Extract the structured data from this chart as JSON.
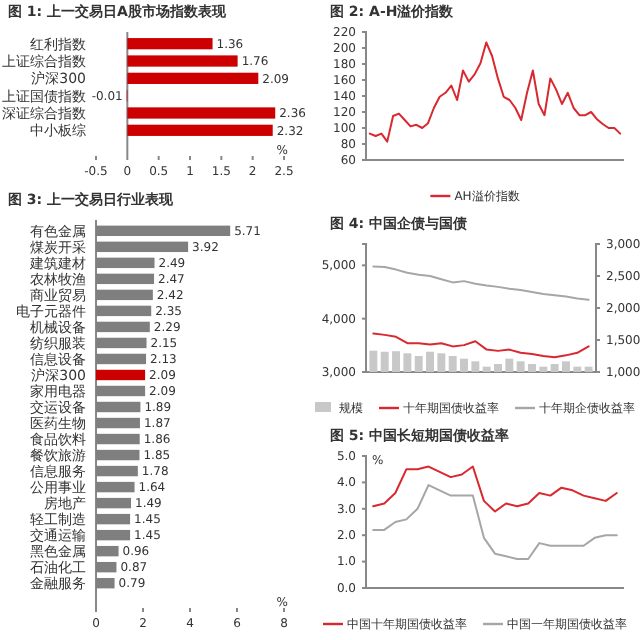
{
  "chart_data": [
    {
      "type": "bar",
      "orientation": "horizontal",
      "title": "图 1: 上一交易日A股市场指数表现",
      "categories": [
        "红利指数",
        "上证综合指数",
        "沪深300",
        "上证国债指数",
        "深证综合指数",
        "中小板综"
      ],
      "values": [
        1.36,
        1.76,
        2.09,
        -0.01,
        2.36,
        2.32
      ],
      "color": "#cc0000",
      "data_labels": true,
      "xlim": [
        -0.5,
        2.5
      ],
      "xticks": [
        -0.5,
        0,
        0.5,
        1,
        1.5,
        2,
        2.5
      ],
      "annotations": [
        "%"
      ]
    },
    {
      "type": "line",
      "title": "图 2: A-H溢价指数",
      "categories": [
        null,
        null,
        null,
        null,
        null,
        null,
        null,
        null,
        null,
        null,
        null,
        null,
        null,
        null,
        null,
        null,
        null,
        null,
        null,
        null,
        null,
        null,
        null,
        null,
        null,
        null,
        null,
        null,
        null,
        null,
        null,
        null,
        null,
        null,
        null,
        null,
        null,
        null,
        null,
        null,
        null,
        null,
        null,
        null
      ],
      "series": [
        {
          "name": "AH溢价指数",
          "color": "#d9282f",
          "values": [
            93,
            90,
            93,
            83,
            115,
            118,
            110,
            102,
            104,
            100,
            106,
            125,
            139,
            144,
            153,
            135,
            172,
            158,
            167,
            181,
            207,
            190,
            162,
            139,
            135,
            125,
            110,
            144,
            172,
            130,
            116,
            162,
            148,
            130,
            144,
            125,
            116,
            116,
            120,
            111,
            105,
            100,
            100,
            93
          ]
        }
      ],
      "ylim": [
        60,
        220
      ],
      "yticks": [
        60,
        80,
        100,
        120,
        140,
        160,
        180,
        200,
        220
      ],
      "legend": "bottom"
    },
    {
      "type": "bar",
      "orientation": "horizontal",
      "title": "图 3: 上一交易日行业表现",
      "categories": [
        "有色金属",
        "煤炭开采",
        "建筑建材",
        "农林牧渔",
        "商业贸易",
        "电子元器件",
        "机械设备",
        "纺织服装",
        "信息设备",
        "沪深300",
        "家用电器",
        "交运设备",
        "医药生物",
        "食品饮料",
        "餐饮旅游",
        "信息服务",
        "公用事业",
        "房地产",
        "轻工制造",
        "交通运输",
        "黑色金属",
        "石油化工",
        "金融服务"
      ],
      "values": [
        5.71,
        3.92,
        2.49,
        2.47,
        2.42,
        2.35,
        2.29,
        2.15,
        2.13,
        2.09,
        2.09,
        1.89,
        1.87,
        1.86,
        1.85,
        1.78,
        1.64,
        1.49,
        1.45,
        1.45,
        0.96,
        0.87,
        0.79
      ],
      "colors": [
        "#7f7f7f",
        "#7f7f7f",
        "#7f7f7f",
        "#7f7f7f",
        "#7f7f7f",
        "#7f7f7f",
        "#7f7f7f",
        "#7f7f7f",
        "#7f7f7f",
        "#cc0000",
        "#7f7f7f",
        "#7f7f7f",
        "#7f7f7f",
        "#7f7f7f",
        "#7f7f7f",
        "#7f7f7f",
        "#7f7f7f",
        "#7f7f7f",
        "#7f7f7f",
        "#7f7f7f",
        "#7f7f7f",
        "#7f7f7f",
        "#7f7f7f"
      ],
      "data_labels": true,
      "xlim": [
        0,
        8
      ],
      "xticks": [
        0,
        2,
        4,
        6,
        8
      ],
      "annotations": [
        "%"
      ]
    },
    {
      "type": "bar",
      "title": "图 4: 中国企债与国债",
      "categories": [
        null,
        null,
        null,
        null,
        null,
        null,
        null,
        null,
        null,
        null,
        null,
        null,
        null,
        null,
        null,
        null,
        null,
        null,
        null,
        null
      ],
      "series": [
        {
          "name": "规模",
          "type": "bar",
          "color": "#c8c8c8",
          "values": [
            3400,
            3380,
            3390,
            3350,
            3300,
            3380,
            3350,
            3300,
            3250,
            3200,
            3100,
            3150,
            3250,
            3200,
            3150,
            3100,
            3150,
            3200,
            3100,
            3100
          ]
        },
        {
          "name": "十年期国债收益率",
          "type": "line",
          "axis": "y2",
          "color": "#d9282f",
          "values": [
            1600,
            1580,
            1550,
            1450,
            1450,
            1430,
            1450,
            1400,
            1420,
            1480,
            1350,
            1330,
            1350,
            1300,
            1280,
            1250,
            1230,
            1260,
            1300,
            1400
          ]
        },
        {
          "name": "十年期企债收益率",
          "type": "line",
          "axis": "y2",
          "color": "#a6a6a6",
          "values": [
            2650,
            2640,
            2600,
            2550,
            2520,
            2500,
            2450,
            2400,
            2420,
            2380,
            2350,
            2330,
            2300,
            2280,
            2250,
            2220,
            2200,
            2180,
            2150,
            2130
          ]
        }
      ],
      "ylim": [
        3000,
        5400
      ],
      "yticks": [
        {
          "value": 3000,
          "label": "3,000"
        },
        {
          "value": 4000,
          "label": "4,000"
        },
        {
          "value": 5000,
          "label": "5,000"
        }
      ],
      "y2lim": [
        1000,
        3000
      ],
      "y2ticks": [
        {
          "value": 1000,
          "label": "1,000"
        },
        {
          "value": 1500,
          "label": "1,500"
        },
        {
          "value": 2000,
          "label": "2,000"
        },
        {
          "value": 2500,
          "label": "2,500"
        },
        {
          "value": 3000,
          "label": "3,000"
        }
      ],
      "legend": "bottom"
    },
    {
      "type": "line",
      "title": "图 5: 中国长短期国债收益率",
      "categories": [
        null,
        null,
        null,
        null,
        null,
        null,
        null,
        null,
        null,
        null,
        null,
        null,
        null,
        null,
        null,
        null,
        null,
        null,
        null,
        null,
        null,
        null,
        null
      ],
      "series": [
        {
          "name": "中国十年期国债收益率",
          "color": "#d9282f",
          "values": [
            3.1,
            3.2,
            3.6,
            4.5,
            4.5,
            4.6,
            4.4,
            4.2,
            4.3,
            4.6,
            3.3,
            2.9,
            3.2,
            3.1,
            3.2,
            3.6,
            3.5,
            3.8,
            3.7,
            3.5,
            3.4,
            3.3,
            3.6
          ]
        },
        {
          "name": "中国一年期国债收益率",
          "color": "#a6a6a6",
          "values": [
            2.2,
            2.2,
            2.5,
            2.6,
            3.0,
            3.9,
            3.7,
            3.5,
            3.5,
            3.5,
            1.9,
            1.3,
            1.2,
            1.1,
            1.1,
            1.7,
            1.6,
            1.6,
            1.6,
            1.6,
            1.9,
            2.0,
            2.0
          ]
        }
      ],
      "ylim": [
        0,
        5
      ],
      "yticks": [
        {
          "value": 0,
          "label": "0.0"
        },
        {
          "value": 1,
          "label": "1.0"
        },
        {
          "value": 2,
          "label": "2.0"
        },
        {
          "value": 3,
          "label": "3.0"
        },
        {
          "value": 4,
          "label": "4.0"
        },
        {
          "value": 5,
          "label": "5.0"
        }
      ],
      "legend": "bottom",
      "annotations": [
        "%"
      ]
    }
  ]
}
